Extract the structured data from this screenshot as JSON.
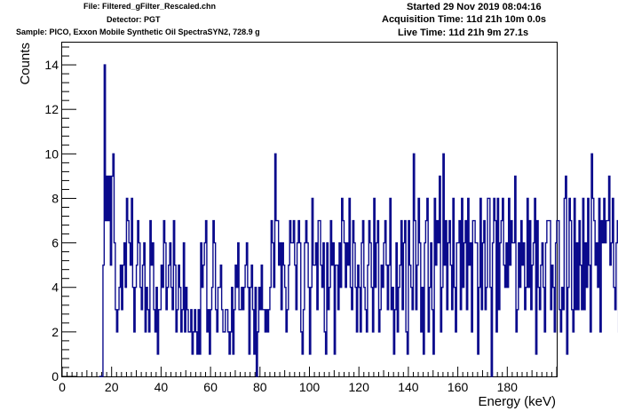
{
  "header": {
    "file": "File: Filtered_gFilter_Rescaled.chn",
    "detector": "Detector: PGT",
    "sample": "Sample: PICO, Exxon Mobile Synthetic Oil SpectraSYN2, 728.9 g",
    "started": "Started 29 Nov 2019 08:04:16",
    "acquisition_time": "Acquisition Time: 11d 21h 10m 0.0s",
    "live_time": "Live Time: 11d 21h 9m 27.1s"
  },
  "chart_data": {
    "type": "histogram",
    "title": "",
    "xlabel": "Energy (keV)",
    "ylabel": "Counts",
    "xlim": [
      0,
      200
    ],
    "ylim": [
      0,
      15
    ],
    "xticks": [
      0,
      20,
      40,
      60,
      80,
      100,
      120,
      140,
      160,
      180
    ],
    "yticks": [
      0,
      2,
      4,
      6,
      8,
      10,
      12,
      14
    ],
    "grid": false,
    "legend": "none",
    "line_color": "#0a0a8c",
    "bin_width": 0.5,
    "x_start": 15.0,
    "values": [
      0,
      0,
      0,
      5,
      14,
      7,
      9,
      7,
      9,
      5,
      9,
      10,
      6,
      3,
      2,
      3,
      4,
      5,
      3,
      5,
      6,
      4,
      8,
      7,
      6,
      5,
      8,
      4,
      2,
      4,
      5,
      7,
      6,
      4,
      3,
      5,
      6,
      2,
      4,
      3,
      2,
      7,
      5,
      6,
      3,
      2,
      4,
      1,
      3,
      3,
      5,
      4,
      7,
      6,
      3,
      4,
      5,
      6,
      4,
      3,
      7,
      5,
      2,
      3,
      5,
      4,
      2,
      3,
      6,
      2,
      4,
      3,
      2,
      2,
      3,
      1,
      2,
      3,
      2,
      1,
      3,
      1,
      6,
      4,
      5,
      6,
      7,
      2,
      3,
      1,
      3,
      4,
      7,
      6,
      3,
      2,
      4,
      4,
      5,
      3,
      2,
      2,
      3,
      3,
      2,
      1,
      2,
      4,
      1,
      3,
      5,
      4,
      6,
      3,
      3,
      4,
      3,
      4,
      5,
      6,
      4,
      1,
      4,
      5,
      3,
      1,
      4,
      0,
      2,
      4,
      3,
      5,
      3,
      3,
      2,
      3,
      2,
      3,
      4,
      7,
      6,
      4,
      10,
      7,
      7,
      5,
      6,
      3,
      6,
      5,
      4,
      2,
      3,
      5,
      7,
      6,
      6,
      7,
      5,
      3,
      6,
      7,
      6,
      2,
      1,
      3,
      6,
      7,
      6,
      4,
      1,
      4,
      8,
      5,
      5,
      6,
      3,
      7,
      7,
      5,
      4,
      6,
      2,
      1,
      6,
      3,
      4,
      7,
      5,
      6,
      1,
      5,
      5,
      3,
      6,
      4,
      8,
      7,
      6,
      4,
      6,
      5,
      8,
      4,
      3,
      7,
      6,
      4,
      2,
      5,
      4,
      2,
      6,
      7,
      4,
      3,
      2,
      5,
      7,
      6,
      4,
      2,
      8,
      4,
      6,
      7,
      2,
      3,
      5,
      4,
      6,
      7,
      5,
      3,
      5,
      8,
      3,
      4,
      1,
      3,
      6,
      2,
      4,
      5,
      7,
      3,
      6,
      7,
      2,
      1,
      7,
      5,
      4,
      3,
      10,
      7,
      3,
      5,
      8,
      6,
      2,
      4,
      1,
      6,
      7,
      8,
      2,
      4,
      6,
      3,
      1,
      8,
      5,
      7,
      6,
      9,
      2,
      4,
      10,
      5,
      7,
      3,
      6,
      7,
      5,
      3,
      8,
      4,
      2,
      6,
      6,
      7,
      3,
      8,
      4,
      6,
      7,
      3,
      8,
      5,
      6,
      2,
      7,
      7,
      6,
      6,
      1,
      4,
      8,
      3,
      6,
      7,
      3,
      4,
      8,
      8,
      4,
      0,
      6,
      8,
      7,
      2,
      8,
      3,
      6,
      7,
      8,
      5,
      4,
      6,
      4,
      8,
      5,
      7,
      6,
      6,
      9,
      2,
      3,
      6,
      4,
      7,
      5,
      6,
      3,
      4,
      8,
      4,
      7,
      3,
      5,
      6,
      8,
      1,
      7,
      4,
      3,
      5,
      6,
      4,
      2,
      6,
      7,
      7,
      7,
      3,
      5,
      4,
      2,
      6,
      7,
      7,
      3,
      2,
      4,
      3,
      8,
      9,
      1,
      4,
      8,
      7,
      3,
      2,
      8,
      3,
      6,
      3,
      7,
      5,
      3,
      8,
      3,
      6,
      4,
      8,
      5,
      2,
      10,
      8,
      7,
      5,
      6,
      4,
      8,
      2,
      7,
      6,
      8,
      6,
      7,
      7,
      9,
      5,
      6,
      8,
      4,
      3,
      6,
      7,
      2,
      5,
      8,
      3,
      7,
      4,
      10,
      5,
      11,
      7,
      5,
      2,
      9,
      4,
      6,
      7,
      8,
      3,
      6,
      7,
      5,
      4,
      6,
      7,
      4,
      6,
      2,
      8,
      7,
      10,
      6,
      6,
      9,
      7,
      12,
      4,
      5,
      3,
      7,
      8,
      6,
      10,
      4,
      8,
      7,
      6,
      5,
      2,
      8,
      9,
      6,
      8,
      7,
      4,
      3,
      5,
      2,
      8,
      6,
      11,
      4,
      7,
      6,
      3,
      8,
      9,
      7,
      5,
      3,
      6,
      10,
      2,
      6,
      7,
      4,
      9,
      3,
      5,
      6,
      2,
      7,
      7,
      8,
      4,
      6,
      4,
      4,
      3,
      8,
      4,
      2,
      4,
      5,
      6,
      2,
      6,
      9,
      4,
      6,
      7,
      5,
      3,
      6,
      9,
      4,
      5,
      6,
      4,
      6,
      3,
      1,
      7,
      3,
      6,
      5,
      6,
      4,
      2,
      5,
      6,
      3,
      4,
      3,
      7,
      0,
      6,
      4,
      5,
      6,
      5,
      4,
      3,
      6,
      4,
      7,
      7,
      3,
      5,
      6,
      3,
      6,
      4,
      8,
      6,
      5,
      3,
      7,
      4,
      5,
      6,
      5,
      5,
      6,
      4,
      6,
      3,
      7,
      3,
      6,
      7,
      3,
      7,
      4,
      6,
      3
    ]
  }
}
